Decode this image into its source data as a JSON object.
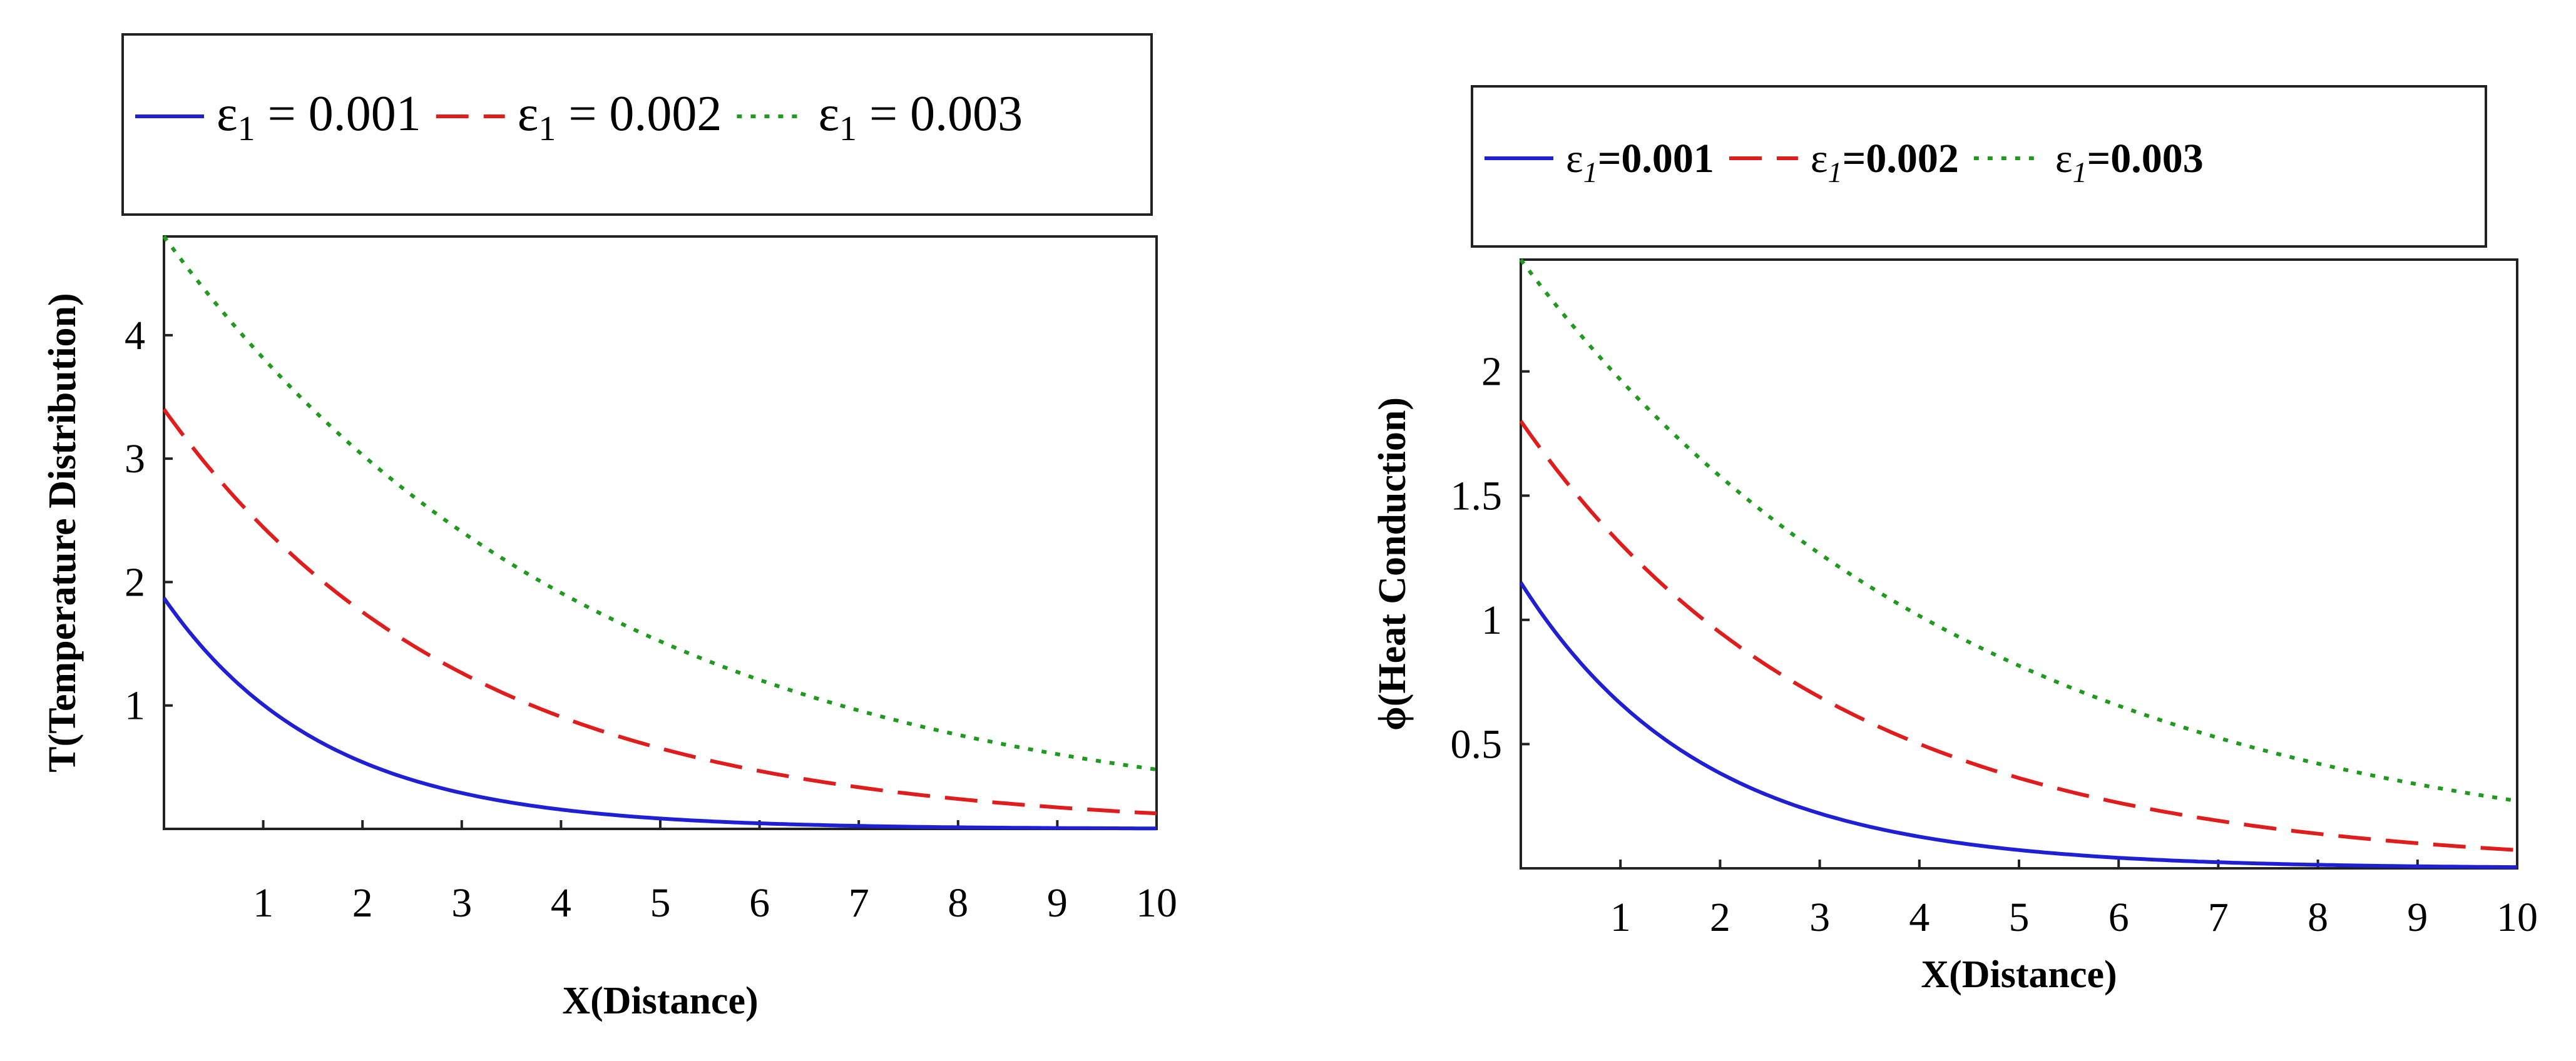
{
  "colors": {
    "series1": "#1f1fd6",
    "series2": "#e01c1c",
    "series3": "#1f9a1f"
  },
  "chart_data": [
    {
      "type": "line",
      "title": "",
      "xlabel": "X(Distance)",
      "ylabel": "T(Temperature Distribution)",
      "xlim": [
        0,
        10
      ],
      "ylim": [
        0,
        4.8
      ],
      "xticks": [
        1,
        2,
        3,
        4,
        5,
        6,
        7,
        8,
        9,
        10
      ],
      "yticks": [
        1,
        2,
        3,
        4
      ],
      "legend_style": "normal",
      "series": [
        {
          "name": "ε1 = 0.001",
          "symbol": "ε",
          "sub": "1",
          "value": " = 0.001",
          "style": "solid",
          "color": "#1f1fd6",
          "start": 1.87,
          "decay": 0.62
        },
        {
          "name": "ε1 = 0.002",
          "symbol": "ε",
          "sub": "1",
          "value": " = 0.002",
          "style": "dashed",
          "color": "#e01c1c",
          "start": 3.4,
          "decay": 0.33
        },
        {
          "name": "ε1 = 0.003",
          "symbol": "ε",
          "sub": "1",
          "value": " = 0.003",
          "style": "dotted",
          "color": "#1f9a1f",
          "start": 4.8,
          "decay": 0.23
        }
      ]
    },
    {
      "type": "line",
      "title": "",
      "xlabel": "X(Distance)",
      "ylabel": "ϕ(Heat Conduction)",
      "xlim": [
        0,
        10
      ],
      "ylim": [
        0,
        2.45
      ],
      "xticks": [
        1,
        2,
        3,
        4,
        5,
        6,
        7,
        8,
        9,
        10
      ],
      "yticks": [
        0.5,
        1,
        1.5,
        2
      ],
      "legend_style": "bold",
      "series": [
        {
          "name": "ε1=0.001",
          "symbol": "ε",
          "sub": "1",
          "value": "=0.001",
          "style": "solid",
          "color": "#1f1fd6",
          "start": 1.15,
          "decay": 0.55
        },
        {
          "name": "ε1=0.002",
          "symbol": "ε",
          "sub": "1",
          "value": "=0.002",
          "style": "dashed",
          "color": "#e01c1c",
          "start": 1.8,
          "decay": 0.32
        },
        {
          "name": "ε1=0.003",
          "symbol": "ε",
          "sub": "1",
          "value": "=0.003",
          "style": "dotted",
          "color": "#1f9a1f",
          "start": 2.45,
          "decay": 0.22
        }
      ]
    }
  ]
}
